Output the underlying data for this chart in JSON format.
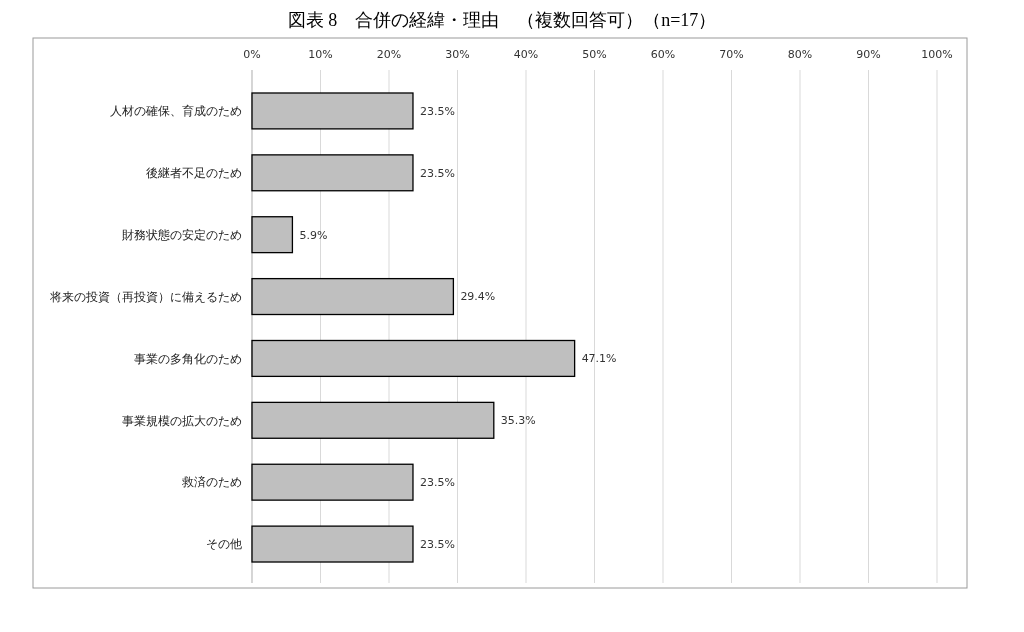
{
  "chart_data": {
    "type": "bar",
    "orientation": "horizontal",
    "title": "図表 8　合併の経緯・理由　（複数回答可）（n=17）",
    "categories": [
      "人材の確保、育成のため",
      "後継者不足のため",
      "財務状態の安定のため",
      "将来の投資（再投資）に備えるため",
      "事業の多角化のため",
      "事業規模の拡大のため",
      "救済のため",
      "その他"
    ],
    "values": [
      23.5,
      23.5,
      5.9,
      29.4,
      47.1,
      35.3,
      23.5,
      23.5
    ],
    "value_labels": [
      "23.5%",
      "23.5%",
      "5.9%",
      "29.4%",
      "47.1%",
      "35.3%",
      "23.5%",
      "23.5%"
    ],
    "color": "#bfbfbf",
    "xlim": [
      0,
      100
    ],
    "xticks": [
      {
        "value": 0,
        "label": "0%"
      },
      {
        "value": 10,
        "label": "10%"
      },
      {
        "value": 20,
        "label": "20%"
      },
      {
        "value": 30,
        "label": "30%"
      },
      {
        "value": 40,
        "label": "40%"
      },
      {
        "value": 50,
        "label": "50%"
      },
      {
        "value": 60,
        "label": "60%"
      },
      {
        "value": 70,
        "label": "70%"
      },
      {
        "value": 80,
        "label": "80%"
      },
      {
        "value": 90,
        "label": "90%"
      },
      {
        "value": 100,
        "label": "100%"
      }
    ],
    "grid": "x"
  }
}
